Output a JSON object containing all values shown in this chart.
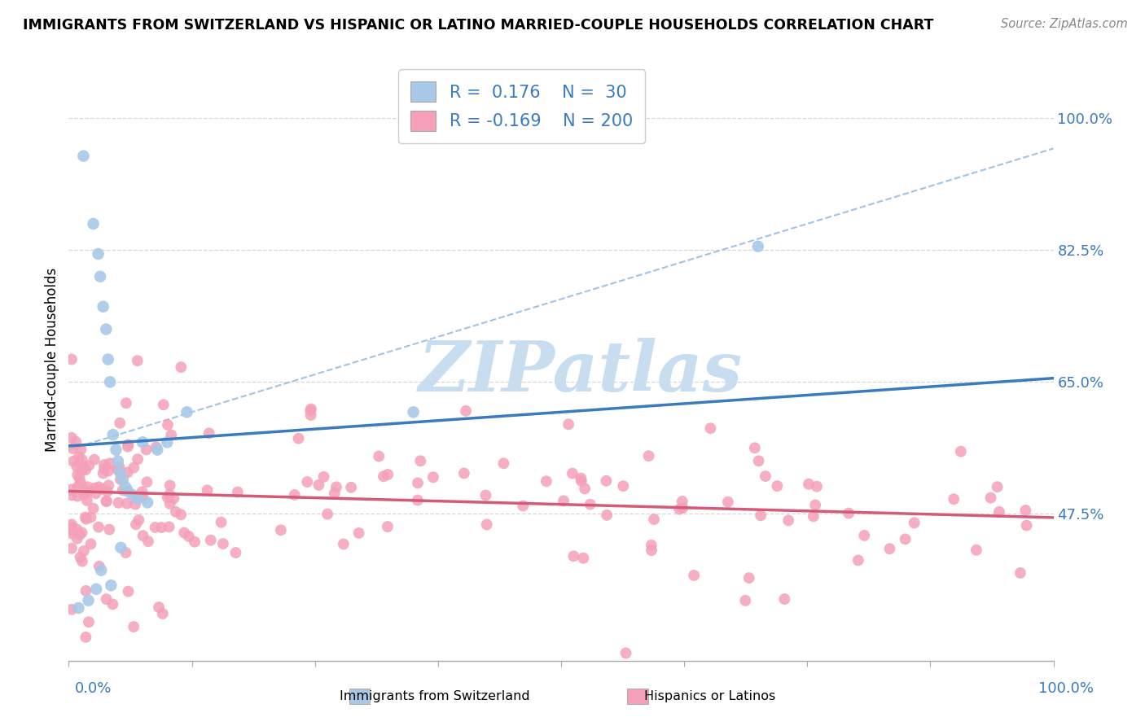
{
  "title": "IMMIGRANTS FROM SWITZERLAND VS HISPANIC OR LATINO MARRIED-COUPLE HOUSEHOLDS CORRELATION CHART",
  "source": "Source: ZipAtlas.com",
  "ylabel": "Married-couple Households",
  "legend1_label": "Immigrants from Switzerland",
  "legend2_label": "Hispanics or Latinos",
  "R1": 0.176,
  "N1": 30,
  "R2": -0.169,
  "N2": 200,
  "blue_fill": "#a8c8e8",
  "pink_fill": "#f4a0b8",
  "blue_line_color": "#3a7abf",
  "pink_line_color": "#d45a78",
  "dash_line_color": "#90b8e0",
  "watermark_color": "#c8ddf0",
  "ytick_color": "#3a7abf",
  "xtick_label_color": "#3a7abf",
  "yticks": [
    47.5,
    65.0,
    82.5,
    100.0
  ],
  "xlim": [
    0,
    100
  ],
  "ylim": [
    28,
    108
  ],
  "blue_x": [
    1.5,
    2.5,
    3.0,
    3.2,
    3.5,
    3.8,
    4.0,
    4.2,
    4.5,
    4.8,
    5.0,
    5.2,
    5.5,
    5.8,
    6.0,
    6.5,
    7.0,
    7.5,
    8.0,
    9.0,
    10.0,
    12.0,
    35.0,
    70.0,
    1.0,
    2.0,
    2.8,
    3.3,
    4.3,
    5.3
  ],
  "blue_y": [
    95.0,
    86.0,
    82.0,
    79.0,
    75.0,
    72.0,
    68.0,
    65.0,
    58.0,
    56.0,
    54.5,
    53.0,
    52.0,
    51.0,
    50.5,
    50.0,
    49.5,
    57.0,
    49.0,
    56.0,
    57.0,
    61.0,
    61.0,
    83.0,
    35.0,
    36.0,
    37.5,
    40.0,
    38.0,
    43.0
  ],
  "blue_trend_x0": 0,
  "blue_trend_x1": 100,
  "blue_trend_y0": 56.5,
  "blue_trend_y1": 65.5,
  "pink_trend_y0": 50.5,
  "pink_trend_y1": 47.0,
  "diag_x0": 0,
  "diag_x1": 100,
  "diag_y0": 56.0,
  "diag_y1": 96.0,
  "grid_color": "#d8d8d8"
}
